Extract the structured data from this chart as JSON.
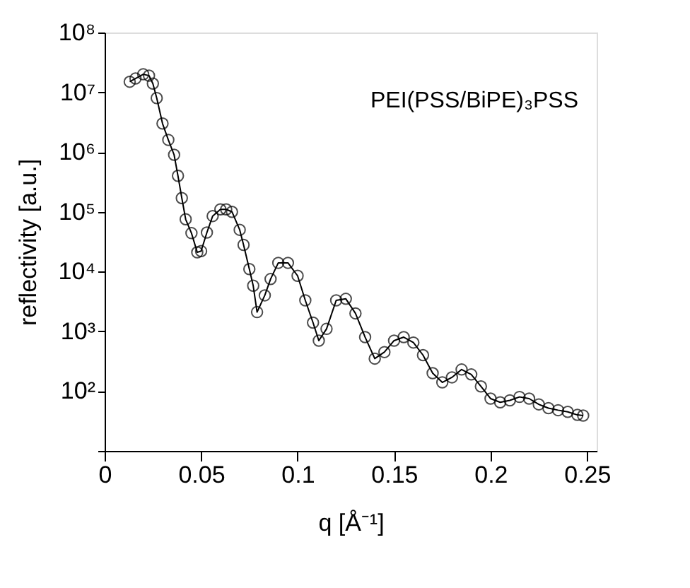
{
  "chart_data": {
    "type": "line",
    "xlabel": "q [Å⁻¹]",
    "ylabel": "reflectivity [a.u.]",
    "annotations": [
      "PEI(PSS/BiPE)₃PSS"
    ],
    "x": [
      0.013,
      0.016,
      0.02,
      0.023,
      0.025,
      0.027,
      0.03,
      0.033,
      0.036,
      0.038,
      0.04,
      0.042,
      0.045,
      0.048,
      0.05,
      0.053,
      0.056,
      0.06,
      0.063,
      0.066,
      0.07,
      0.072,
      0.075,
      0.077,
      0.079,
      0.083,
      0.086,
      0.09,
      0.095,
      0.1,
      0.104,
      0.108,
      0.111,
      0.115,
      0.12,
      0.125,
      0.13,
      0.135,
      0.14,
      0.145,
      0.15,
      0.155,
      0.16,
      0.165,
      0.17,
      0.175,
      0.18,
      0.185,
      0.19,
      0.195,
      0.2,
      0.205,
      0.21,
      0.215,
      0.22,
      0.225,
      0.23,
      0.235,
      0.24,
      0.245,
      0.248
    ],
    "series": [
      {
        "color": "#000000",
        "values": [
          15000000.0,
          17000000.0,
          20000000.0,
          19000000.0,
          14000000.0,
          8000000.0,
          3000000.0,
          1600000.0,
          900000.0,
          400000.0,
          170000.0,
          75000.0,
          44000.0,
          21000.0,
          22000.0,
          45000.0,
          85000.0,
          110000.0,
          110000.0,
          100000.0,
          50000.0,
          28000.0,
          11000.0,
          5800.0,
          2100.0,
          4000.0,
          7500.0,
          14000.0,
          14000.0,
          8500.0,
          3300.0,
          1400.0,
          700.0,
          1100.0,
          3300.0,
          3500.0,
          2000.0,
          800.0,
          350.0,
          450.0,
          700.0,
          800.0,
          650.0,
          400.0,
          200.0,
          140.0,
          170.0,
          230.0,
          190.0,
          120.0,
          75.0,
          65.0,
          70.0,
          80.0,
          75.0,
          60.0,
          52.0,
          48.0,
          45.0,
          40.0,
          39.0
        ]
      }
    ],
    "marker": "circle",
    "log": true,
    "xlim": [
      0,
      0.255
    ],
    "xticks": [
      0,
      0.05,
      0.1,
      0.15,
      0.2,
      0.25
    ],
    "ylim": [
      10,
      100000000.0
    ],
    "yticks": [
      {
        "value": 10,
        "label": null
      },
      {
        "value": 100,
        "label": "10²"
      },
      {
        "value": 1000,
        "label": "10³"
      },
      {
        "value": 10000,
        "label": "10⁴"
      },
      {
        "value": 100000,
        "label": "10⁵"
      },
      {
        "value": 1000000,
        "label": "10⁶"
      },
      {
        "value": 10000000,
        "label": "10⁷"
      },
      {
        "value": 100000000,
        "label": "10⁸"
      }
    ],
    "tick_labels": true
  }
}
